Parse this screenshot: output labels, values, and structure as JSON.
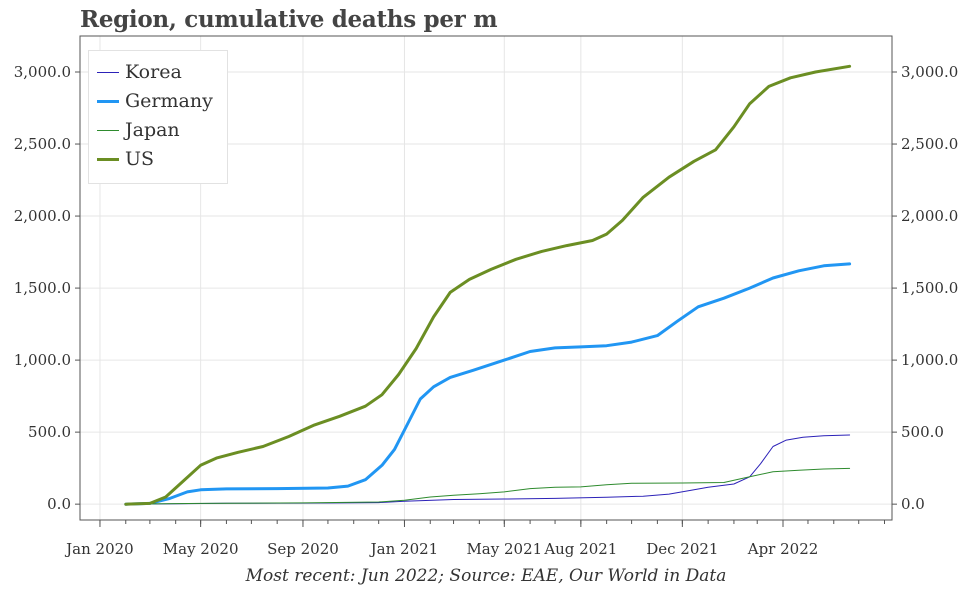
{
  "title": "Region, cumulative deaths per m",
  "source": "Most recent: Jun 2022; Source: EAE, Our World in Data",
  "chart_data": {
    "type": "line",
    "title": "Region, cumulative deaths per m",
    "xlabel": "",
    "ylabel": "",
    "x_ticks": [
      "Jan 2020",
      "May 2020",
      "Sep 2020",
      "Jan 2021",
      "May 2021",
      "Aug 2021",
      "Dec 2021",
      "Apr 2022"
    ],
    "y_ticks": [
      "0.0",
      "500.0",
      "1,000.0",
      "1,500.0",
      "2,000.0",
      "2,500.0",
      "3,000.0"
    ],
    "xlim": [
      "2019-12-08",
      "2022-08-10"
    ],
    "ylim": [
      -110,
      3250
    ],
    "grid": true,
    "legend": "top-left",
    "series": [
      {
        "name": "Korea",
        "color": "#2c22b8",
        "width": 1,
        "points": [
          [
            "2020-02-01",
            0
          ],
          [
            "2020-03-01",
            1
          ],
          [
            "2020-06-01",
            6
          ],
          [
            "2020-09-01",
            7
          ],
          [
            "2020-12-01",
            11
          ],
          [
            "2021-01-01",
            20
          ],
          [
            "2021-03-01",
            32
          ],
          [
            "2021-05-01",
            36
          ],
          [
            "2021-07-01",
            40
          ],
          [
            "2021-09-01",
            48
          ],
          [
            "2021-10-15",
            55
          ],
          [
            "2021-11-15",
            70
          ],
          [
            "2021-12-10",
            95
          ],
          [
            "2022-01-01",
            118
          ],
          [
            "2022-02-01",
            140
          ],
          [
            "2022-02-20",
            190
          ],
          [
            "2022-03-05",
            280
          ],
          [
            "2022-03-20",
            400
          ],
          [
            "2022-04-05",
            445
          ],
          [
            "2022-04-25",
            465
          ],
          [
            "2022-05-20",
            475
          ],
          [
            "2022-06-20",
            480
          ]
        ]
      },
      {
        "name": "Germany",
        "color": "#2196f3",
        "width": 3,
        "points": [
          [
            "2020-02-01",
            0
          ],
          [
            "2020-03-01",
            5
          ],
          [
            "2020-03-25",
            40
          ],
          [
            "2020-04-15",
            85
          ],
          [
            "2020-05-01",
            100
          ],
          [
            "2020-06-01",
            106
          ],
          [
            "2020-08-01",
            108
          ],
          [
            "2020-10-01",
            112
          ],
          [
            "2020-10-25",
            125
          ],
          [
            "2020-11-15",
            170
          ],
          [
            "2020-12-05",
            270
          ],
          [
            "2020-12-20",
            380
          ],
          [
            "2021-01-05",
            560
          ],
          [
            "2021-01-20",
            730
          ],
          [
            "2021-02-05",
            815
          ],
          [
            "2021-02-25",
            880
          ],
          [
            "2021-03-25",
            930
          ],
          [
            "2021-05-01",
            1000
          ],
          [
            "2021-06-01",
            1060
          ],
          [
            "2021-07-01",
            1085
          ],
          [
            "2021-08-01",
            1092
          ],
          [
            "2021-09-01",
            1100
          ],
          [
            "2021-10-01",
            1125
          ],
          [
            "2021-11-01",
            1170
          ],
          [
            "2021-11-25",
            1270
          ],
          [
            "2021-12-20",
            1370
          ],
          [
            "2022-01-20",
            1430
          ],
          [
            "2022-02-20",
            1500
          ],
          [
            "2022-03-20",
            1570
          ],
          [
            "2022-04-20",
            1620
          ],
          [
            "2022-05-20",
            1655
          ],
          [
            "2022-06-20",
            1668
          ]
        ]
      },
      {
        "name": "Japan",
        "color": "#2e8b2e",
        "width": 1,
        "points": [
          [
            "2020-02-01",
            0
          ],
          [
            "2020-05-01",
            5
          ],
          [
            "2020-09-01",
            9
          ],
          [
            "2020-12-01",
            15
          ],
          [
            "2021-01-01",
            27
          ],
          [
            "2021-02-01",
            50
          ],
          [
            "2021-03-01",
            62
          ],
          [
            "2021-04-01",
            72
          ],
          [
            "2021-05-01",
            85
          ],
          [
            "2021-06-01",
            108
          ],
          [
            "2021-07-01",
            117
          ],
          [
            "2021-08-01",
            120
          ],
          [
            "2021-09-01",
            135
          ],
          [
            "2021-10-01",
            145
          ],
          [
            "2021-12-01",
            147
          ],
          [
            "2022-01-20",
            150
          ],
          [
            "2022-02-20",
            190
          ],
          [
            "2022-03-20",
            225
          ],
          [
            "2022-04-20",
            236
          ],
          [
            "2022-05-20",
            244
          ],
          [
            "2022-06-20",
            248
          ]
        ]
      },
      {
        "name": "US",
        "color": "#6b8e23",
        "width": 3,
        "points": [
          [
            "2020-02-01",
            0
          ],
          [
            "2020-03-01",
            5
          ],
          [
            "2020-03-20",
            50
          ],
          [
            "2020-04-10",
            160
          ],
          [
            "2020-05-01",
            270
          ],
          [
            "2020-05-20",
            320
          ],
          [
            "2020-06-15",
            360
          ],
          [
            "2020-07-15",
            400
          ],
          [
            "2020-08-15",
            470
          ],
          [
            "2020-09-15",
            550
          ],
          [
            "2020-10-15",
            610
          ],
          [
            "2020-11-15",
            680
          ],
          [
            "2020-12-05",
            760
          ],
          [
            "2020-12-25",
            900
          ],
          [
            "2021-01-15",
            1080
          ],
          [
            "2021-02-05",
            1300
          ],
          [
            "2021-02-25",
            1470
          ],
          [
            "2021-03-20",
            1560
          ],
          [
            "2021-04-15",
            1630
          ],
          [
            "2021-05-15",
            1700
          ],
          [
            "2021-06-15",
            1755
          ],
          [
            "2021-07-15",
            1795
          ],
          [
            "2021-08-15",
            1830
          ],
          [
            "2021-09-01",
            1875
          ],
          [
            "2021-09-20",
            1970
          ],
          [
            "2021-10-15",
            2130
          ],
          [
            "2021-11-15",
            2270
          ],
          [
            "2021-12-15",
            2380
          ],
          [
            "2022-01-10",
            2460
          ],
          [
            "2022-02-01",
            2620
          ],
          [
            "2022-02-20",
            2780
          ],
          [
            "2022-03-15",
            2900
          ],
          [
            "2022-04-10",
            2960
          ],
          [
            "2022-05-10",
            3000
          ],
          [
            "2022-06-20",
            3040
          ]
        ]
      }
    ]
  }
}
